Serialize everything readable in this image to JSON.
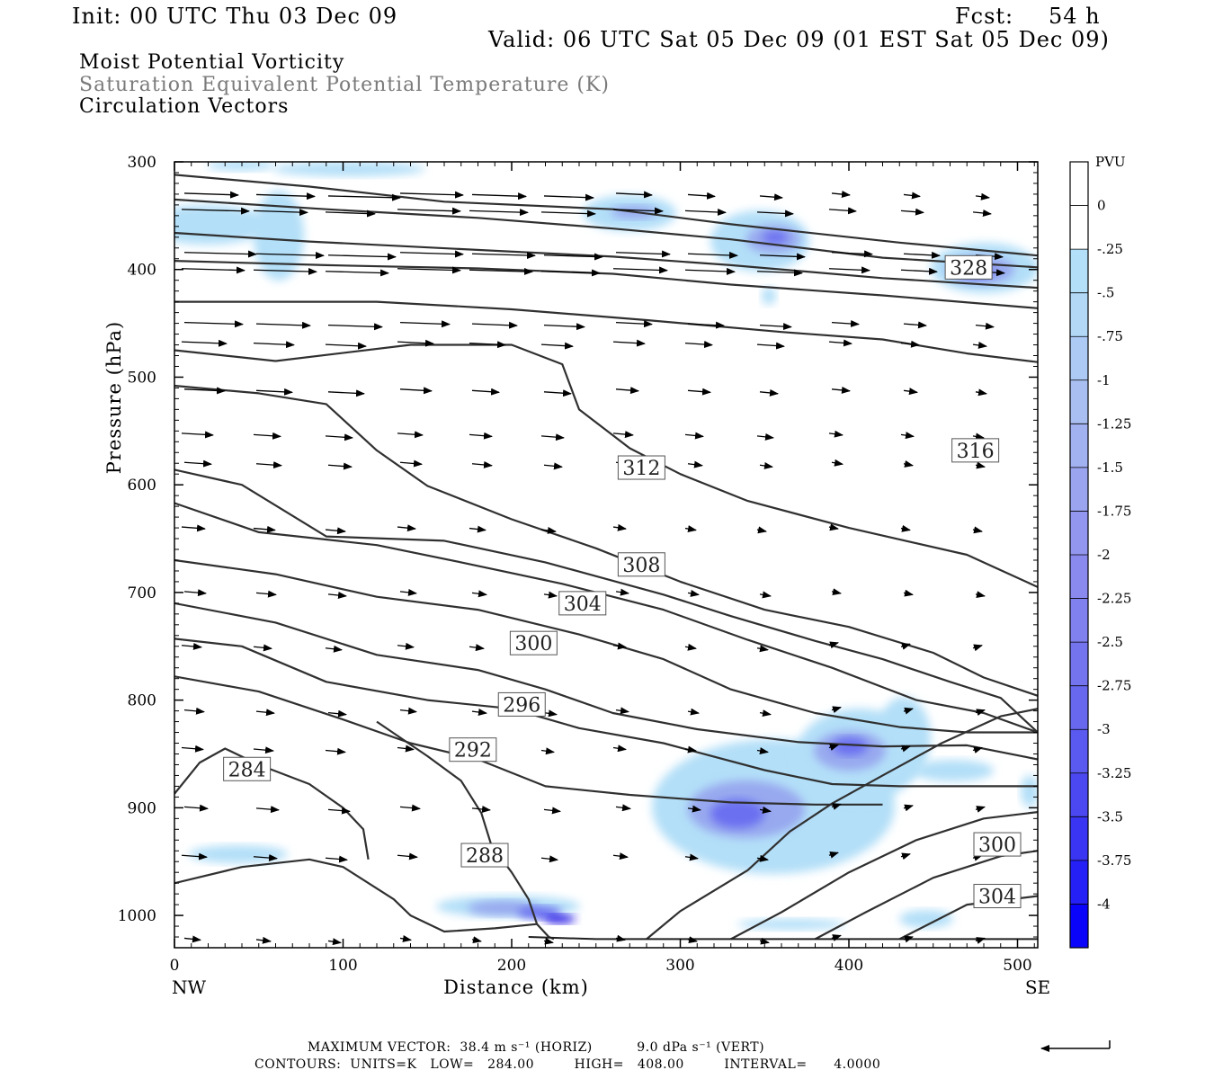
{
  "header": {
    "init": "Init: 00 UTC Thu 03 Dec 09",
    "fcst_label": "Fcst:",
    "fcst_value": "54 h",
    "valid": "Valid: 06 UTC Sat 05 Dec 09 (01 EST Sat 05 Dec 09)"
  },
  "fields": {
    "line1": "Moist Potential Vorticity",
    "line2": "Saturation Equivalent Potential Temperature (K)",
    "line3": "Circulation Vectors"
  },
  "footer": {
    "max_vector": "MAXIMUM VECTOR:  38.4 m s⁻¹ (HORIZ)          9.0 dPa s⁻¹ (VERT)",
    "contours": "CONTOURS:  UNITS=K   LOW=   284.00         HIGH=   408.00         INTERVAL=      4.0000"
  },
  "colors": {
    "contour": "#303030",
    "shade_light": "#b3dff8",
    "shade_mid": "#98a9ef",
    "shade_dark": "#6a6ff0",
    "shade_core": "#2a1fe6"
  },
  "chart_data": {
    "type": "cross-section",
    "xlabel": "Distance (km)",
    "ylabel": "Pressure (hPa)",
    "xlim": [
      0,
      512
    ],
    "ylim": [
      1030,
      300
    ],
    "x_ticks": [
      0,
      100,
      200,
      300,
      400,
      500
    ],
    "y_ticks": [
      300,
      400,
      500,
      600,
      700,
      800,
      900,
      1000
    ],
    "x_end_labels": {
      "left": "NW",
      "right": "SE"
    },
    "colorbar": {
      "unit": "PVU",
      "labels": [
        "0",
        "-.25",
        "-.5",
        "-.75",
        "-1",
        "-1.25",
        "-1.5",
        "-1.75",
        "-2",
        "-2.25",
        "-2.5",
        "-2.75",
        "-3",
        "-3.25",
        "-3.5",
        "-3.75",
        "-4"
      ],
      "colors": [
        "#ffffff",
        "#ffffff",
        "#b3dff8",
        "#b2d8f6",
        "#adcaf4",
        "#a9bff2",
        "#a2b1f0",
        "#9ba4ef",
        "#9396ee",
        "#8a89ee",
        "#8080ee",
        "#7474ee",
        "#6868ef",
        "#5b5af0",
        "#4b47f1",
        "#3a35f3",
        "#2520f6",
        "#0a05fa"
      ]
    },
    "contour_labels": [
      {
        "text": "328",
        "x": 471,
        "p": 398
      },
      {
        "text": "316",
        "x": 475,
        "p": 568
      },
      {
        "text": "312",
        "x": 277,
        "p": 584
      },
      {
        "text": "308",
        "x": 277,
        "p": 674
      },
      {
        "text": "304",
        "x": 242,
        "p": 710
      },
      {
        "text": "300",
        "x": 213,
        "p": 747
      },
      {
        "text": "296",
        "x": 206,
        "p": 804
      },
      {
        "text": "292",
        "x": 177,
        "p": 846
      },
      {
        "text": "284",
        "x": 43,
        "p": 864
      },
      {
        "text": "288",
        "x": 184,
        "p": 944
      },
      {
        "text": "300",
        "x": 488,
        "p": 934
      },
      {
        "text": "304",
        "x": 488,
        "p": 982
      }
    ],
    "theta_e_lines": [
      {
        "points": [
          [
            0,
            312
          ],
          [
            80,
            323
          ],
          [
            160,
            337
          ],
          [
            260,
            344
          ],
          [
            330,
            358
          ],
          [
            430,
            375
          ],
          [
            512,
            387
          ]
        ]
      },
      {
        "points": [
          [
            0,
            335
          ],
          [
            90,
            344
          ],
          [
            180,
            352
          ],
          [
            260,
            362
          ],
          [
            330,
            372
          ],
          [
            420,
            389
          ],
          [
            512,
            398
          ]
        ]
      },
      {
        "points": [
          [
            0,
            366
          ],
          [
            80,
            374
          ],
          [
            170,
            381
          ],
          [
            260,
            388
          ],
          [
            330,
            396
          ],
          [
            420,
            408
          ],
          [
            512,
            417
          ]
        ]
      },
      {
        "points": [
          [
            0,
            392
          ],
          [
            90,
            396
          ],
          [
            180,
            399
          ],
          [
            260,
            404
          ],
          [
            330,
            414
          ],
          [
            420,
            424
          ],
          [
            512,
            436
          ]
        ]
      },
      {
        "points": [
          [
            0,
            430
          ],
          [
            120,
            430
          ],
          [
            200,
            437
          ],
          [
            280,
            447
          ],
          [
            360,
            458
          ],
          [
            420,
            465
          ],
          [
            470,
            478
          ],
          [
            512,
            486
          ]
        ]
      },
      {
        "points": [
          [
            0,
            475
          ],
          [
            60,
            485
          ],
          [
            140,
            470
          ],
          [
            200,
            470
          ],
          [
            230,
            488
          ],
          [
            240,
            530
          ],
          [
            270,
            566
          ],
          [
            300,
            590
          ],
          [
            340,
            615
          ],
          [
            400,
            640
          ],
          [
            470,
            665
          ],
          [
            512,
            695
          ]
        ]
      },
      {
        "points": [
          [
            0,
            508
          ],
          [
            50,
            515
          ],
          [
            90,
            525
          ],
          [
            120,
            568
          ],
          [
            150,
            601
          ],
          [
            200,
            632
          ],
          [
            250,
            659
          ],
          [
            300,
            690
          ],
          [
            350,
            716
          ],
          [
            400,
            732
          ],
          [
            450,
            756
          ],
          [
            480,
            779
          ],
          [
            512,
            796
          ]
        ]
      },
      {
        "points": [
          [
            0,
            586
          ],
          [
            40,
            600
          ],
          [
            90,
            648
          ],
          [
            160,
            652
          ],
          [
            220,
            672
          ],
          [
            290,
            702
          ],
          [
            330,
            722
          ],
          [
            380,
            745
          ],
          [
            420,
            762
          ],
          [
            460,
            783
          ],
          [
            490,
            798
          ],
          [
            512,
            830
          ]
        ]
      },
      {
        "points": [
          [
            0,
            617
          ],
          [
            50,
            644
          ],
          [
            120,
            656
          ],
          [
            170,
            672
          ],
          [
            230,
            692
          ],
          [
            290,
            716
          ],
          [
            340,
            744
          ],
          [
            390,
            770
          ],
          [
            440,
            800
          ],
          [
            480,
            812
          ],
          [
            512,
            830
          ]
        ]
      },
      {
        "points": [
          [
            0,
            670
          ],
          [
            60,
            683
          ],
          [
            120,
            704
          ],
          [
            180,
            716
          ],
          [
            240,
            739
          ],
          [
            290,
            762
          ],
          [
            330,
            790
          ],
          [
            380,
            812
          ],
          [
            430,
            825
          ],
          [
            470,
            830
          ],
          [
            512,
            830
          ]
        ]
      },
      {
        "points": [
          [
            0,
            710
          ],
          [
            60,
            728
          ],
          [
            120,
            758
          ],
          [
            180,
            772
          ],
          [
            220,
            790
          ],
          [
            260,
            812
          ],
          [
            310,
            827
          ],
          [
            370,
            839
          ],
          [
            420,
            843
          ],
          [
            470,
            842
          ],
          [
            512,
            855
          ]
        ]
      },
      {
        "points": [
          [
            0,
            743
          ],
          [
            40,
            750
          ],
          [
            90,
            783
          ],
          [
            150,
            800
          ],
          [
            200,
            808
          ],
          [
            240,
            826
          ],
          [
            290,
            840
          ],
          [
            350,
            865
          ],
          [
            390,
            878
          ],
          [
            430,
            880
          ],
          [
            512,
            880
          ]
        ]
      },
      {
        "points": [
          [
            0,
            778
          ],
          [
            50,
            792
          ],
          [
            100,
            818
          ],
          [
            140,
            840
          ],
          [
            180,
            855
          ],
          [
            220,
            880
          ],
          [
            270,
            888
          ],
          [
            330,
            895
          ],
          [
            380,
            897
          ],
          [
            420,
            897
          ]
        ]
      },
      {
        "points": [
          [
            0,
            887
          ],
          [
            15,
            858
          ],
          [
            30,
            845
          ],
          [
            50,
            860
          ],
          [
            80,
            878
          ],
          [
            100,
            900
          ],
          [
            112,
            920
          ],
          [
            115,
            948
          ]
        ]
      },
      {
        "points": [
          [
            0,
            970
          ],
          [
            40,
            955
          ],
          [
            80,
            948
          ],
          [
            100,
            955
          ],
          [
            130,
            985
          ],
          [
            140,
            1000
          ],
          [
            160,
            1015
          ],
          [
            190,
            1012
          ],
          [
            215,
            1008
          ],
          [
            222,
            1020
          ],
          [
            225,
            1022
          ]
        ]
      },
      {
        "points": [
          [
            120,
            820
          ],
          [
            150,
            852
          ],
          [
            170,
            875
          ],
          [
            182,
            905
          ],
          [
            188,
            935
          ],
          [
            200,
            960
          ],
          [
            210,
            985
          ],
          [
            215,
            1008
          ]
        ]
      },
      {
        "points": [
          [
            280,
            1022
          ],
          [
            300,
            996
          ],
          [
            340,
            958
          ],
          [
            365,
            922
          ],
          [
            390,
            896
          ],
          [
            420,
            870
          ],
          [
            455,
            840
          ],
          [
            490,
            815
          ],
          [
            512,
            808
          ]
        ]
      },
      {
        "points": [
          [
            330,
            1022
          ],
          [
            360,
            997
          ],
          [
            400,
            960
          ],
          [
            440,
            930
          ],
          [
            480,
            910
          ],
          [
            512,
            904
          ]
        ]
      },
      {
        "points": [
          [
            380,
            1022
          ],
          [
            410,
            997
          ],
          [
            450,
            965
          ],
          [
            490,
            945
          ],
          [
            512,
            940
          ]
        ]
      },
      {
        "points": [
          [
            430,
            1022
          ],
          [
            470,
            990
          ],
          [
            512,
            982
          ]
        ]
      }
    ]
  }
}
